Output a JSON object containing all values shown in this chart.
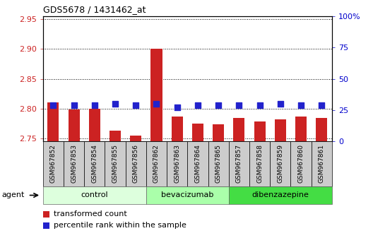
{
  "title": "GDS5678 / 1431462_at",
  "samples": [
    "GSM967852",
    "GSM967853",
    "GSM967854",
    "GSM967855",
    "GSM967856",
    "GSM967862",
    "GSM967863",
    "GSM967864",
    "GSM967865",
    "GSM967857",
    "GSM967858",
    "GSM967859",
    "GSM967860",
    "GSM967861"
  ],
  "bar_values": [
    2.81,
    2.798,
    2.8,
    2.763,
    2.754,
    2.9,
    2.787,
    2.775,
    2.773,
    2.784,
    2.778,
    2.782,
    2.787,
    2.784
  ],
  "percentile_values": [
    29,
    29,
    29,
    30,
    29,
    30,
    27,
    29,
    29,
    29,
    29,
    30,
    29,
    29
  ],
  "ylim_left": [
    2.745,
    2.955
  ],
  "ylim_right": [
    0,
    100
  ],
  "yticks_left": [
    2.75,
    2.8,
    2.85,
    2.9,
    2.95
  ],
  "yticks_right": [
    0,
    25,
    50,
    75,
    100
  ],
  "bar_color": "#cc2222",
  "dot_color": "#2222cc",
  "groups": [
    {
      "label": "control",
      "start": 0,
      "end": 5,
      "color": "#ddffdd"
    },
    {
      "label": "bevacizumab",
      "start": 5,
      "end": 9,
      "color": "#aaffaa"
    },
    {
      "label": "dibenzazepine",
      "start": 9,
      "end": 14,
      "color": "#44dd44"
    }
  ],
  "agent_label": "agent",
  "legend_bar_label": "transformed count",
  "legend_dot_label": "percentile rank within the sample",
  "bar_baseline": 2.745,
  "dot_size": 28,
  "bar_width": 0.55,
  "plot_bg_color": "#ffffff",
  "sample_box_color": "#cccccc",
  "title_color": "#000000",
  "left_tick_color": "#cc2222",
  "right_tick_color": "#0000cc"
}
